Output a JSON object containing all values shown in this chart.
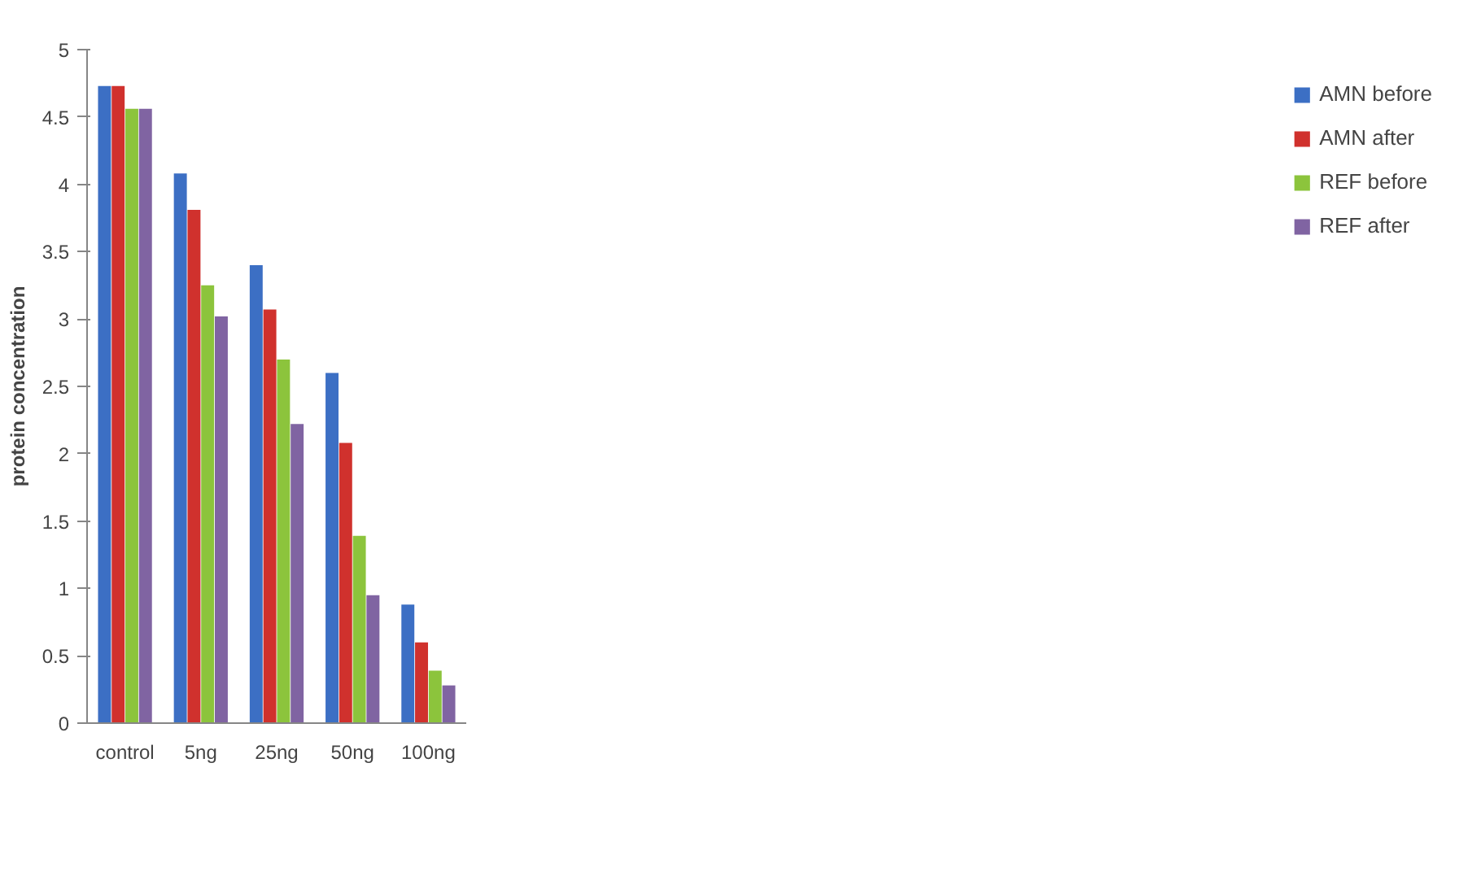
{
  "chart_data": {
    "type": "bar",
    "ylabel": "protein concentration",
    "categories": [
      "control",
      "5ng",
      "25ng",
      "50ng",
      "100ng"
    ],
    "series": [
      {
        "name": "AMN before",
        "color": "#3c6fc4",
        "values": [
          4.73,
          4.08,
          3.4,
          2.6,
          0.88
        ]
      },
      {
        "name": "AMN after",
        "color": "#d0312d",
        "values": [
          4.73,
          3.81,
          3.07,
          2.08,
          0.6
        ]
      },
      {
        "name": "REF before",
        "color": "#8cc43c",
        "values": [
          4.56,
          3.25,
          2.7,
          1.39,
          0.39
        ]
      },
      {
        "name": "REF after",
        "color": "#8064a2",
        "values": [
          4.56,
          3.02,
          2.22,
          0.95,
          0.28
        ]
      }
    ],
    "ylim": [
      0,
      5
    ],
    "yticks": [
      0,
      0.5,
      1,
      1.5,
      2,
      2.5,
      3,
      3.5,
      4,
      4.5,
      5
    ],
    "grid": false,
    "legend": "right"
  }
}
